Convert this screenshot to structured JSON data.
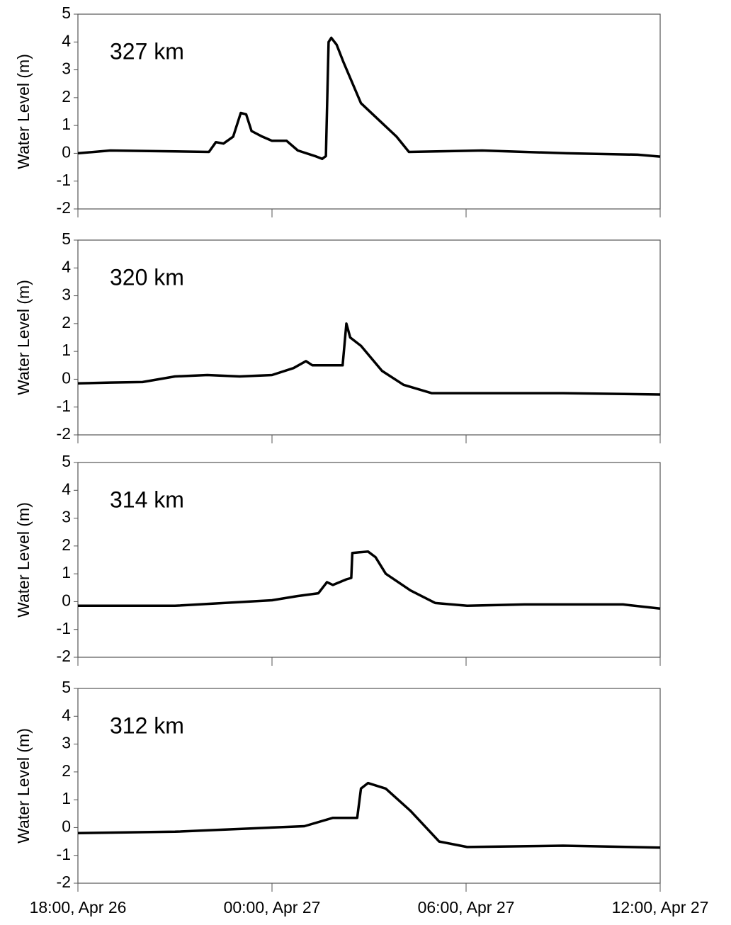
{
  "chart_data": [
    {
      "type": "line",
      "annotation": "327 km",
      "ylabel": "Water Level (m)",
      "color": "#000000",
      "xlim": [
        "Apr 26 18:00",
        "Apr 27 12:00"
      ],
      "xticks": [
        "Apr 26 18:00",
        "Apr 27 00:00",
        "Apr 27 06:00",
        "Apr 27 12:00"
      ],
      "ylim": [
        -2,
        5
      ],
      "yticks": [
        -2,
        -1,
        0,
        1,
        2,
        3,
        4,
        5
      ],
      "x": [
        "Apr 26 18:00",
        "Apr 26 19:00",
        "Apr 26 21:00",
        "Apr 26 22:03",
        "Apr 26 22:16",
        "Apr 26 22:30",
        "Apr 26 22:48",
        "Apr 26 23:02",
        "Apr 26 23:12",
        "Apr 26 23:22",
        "Apr 26 23:42",
        "Apr 27 00:00",
        "Apr 27 00:27",
        "Apr 27 00:48",
        "Apr 27 01:20",
        "Apr 27 01:33",
        "Apr 27 01:40",
        "Apr 27 01:45",
        "Apr 27 01:50",
        "Apr 27 02:00",
        "Apr 27 02:12",
        "Apr 27 02:45",
        "Apr 27 03:18",
        "Apr 27 03:51",
        "Apr 27 04:14",
        "Apr 27 06:30",
        "Apr 27 09:06",
        "Apr 27 11:18",
        "Apr 27 12:00"
      ],
      "values": [
        0,
        0.1,
        0.07,
        0.05,
        0.4,
        0.35,
        0.6,
        1.45,
        1.4,
        0.8,
        0.6,
        0.45,
        0.45,
        0.1,
        -0.1,
        -0.2,
        -0.1,
        4.0,
        4.15,
        3.9,
        3.3,
        1.8,
        1.2,
        0.6,
        0.05,
        0.1,
        0.0,
        -0.05,
        -0.12
      ]
    },
    {
      "type": "line",
      "annotation": "320 km",
      "ylabel": "Water Level (m)",
      "color": "#000000",
      "xlim": [
        "Apr 26 18:00",
        "Apr 27 12:00"
      ],
      "xticks": [
        "Apr 26 18:00",
        "Apr 27 00:00",
        "Apr 27 06:00",
        "Apr 27 12:00"
      ],
      "ylim": [
        -2,
        5
      ],
      "yticks": [
        -2,
        -1,
        0,
        1,
        2,
        3,
        4,
        5
      ],
      "x": [
        "Apr 26 18:00",
        "Apr 26 19:00",
        "Apr 26 20:00",
        "Apr 26 21:00",
        "Apr 26 22:00",
        "Apr 26 23:00",
        "Apr 27 00:00",
        "Apr 27 00:40",
        "Apr 27 01:03",
        "Apr 27 01:15",
        "Apr 27 02:11",
        "Apr 27 02:18",
        "Apr 27 02:25",
        "Apr 27 02:45",
        "Apr 27 03:24",
        "Apr 27 04:04",
        "Apr 27 04:56",
        "Apr 27 06:00",
        "Apr 27 09:00",
        "Apr 27 12:00"
      ],
      "values": [
        -0.15,
        -0.12,
        -0.1,
        0.1,
        0.15,
        0.1,
        0.15,
        0.4,
        0.65,
        0.5,
        0.5,
        2.0,
        1.5,
        1.2,
        0.3,
        -0.2,
        -0.5,
        -0.5,
        -0.5,
        -0.55
      ]
    },
    {
      "type": "line",
      "annotation": "314 km",
      "ylabel": "Water Level (m)",
      "color": "#000000",
      "xlim": [
        "Apr 26 18:00",
        "Apr 27 12:00"
      ],
      "xticks": [
        "Apr 26 18:00",
        "Apr 27 00:00",
        "Apr 27 06:00",
        "Apr 27 12:00"
      ],
      "ylim": [
        -2,
        5
      ],
      "yticks": [
        -2,
        -1,
        0,
        1,
        2,
        3,
        4,
        5
      ],
      "x": [
        "Apr 26 18:00",
        "Apr 26 21:00",
        "Apr 27 00:00",
        "Apr 27 00:47",
        "Apr 27 01:26",
        "Apr 27 01:42",
        "Apr 27 01:53",
        "Apr 27 02:18",
        "Apr 27 02:27",
        "Apr 27 02:29",
        "Apr 27 02:58",
        "Apr 27 03:12",
        "Apr 27 03:31",
        "Apr 27 04:17",
        "Apr 27 05:03",
        "Apr 27 06:02",
        "Apr 27 07:48",
        "Apr 27 10:51",
        "Apr 27 12:00"
      ],
      "values": [
        -0.15,
        -0.15,
        0.05,
        0.2,
        0.3,
        0.7,
        0.6,
        0.8,
        0.85,
        1.75,
        1.8,
        1.6,
        1.0,
        0.4,
        -0.05,
        -0.15,
        -0.1,
        -0.1,
        -0.25
      ]
    },
    {
      "type": "line",
      "annotation": "312 km",
      "ylabel": "Water Level (m)",
      "color": "#000000",
      "xlim": [
        "Apr 26 18:00",
        "Apr 27 12:00"
      ],
      "xticks": [
        {
          "value": "Apr 26 18:00",
          "label": "18:00, Apr 26"
        },
        {
          "value": "Apr 27 00:00",
          "label": "00:00, Apr 27"
        },
        {
          "value": "Apr 27 06:00",
          "label": "06:00, Apr 27"
        },
        {
          "value": "Apr 27 12:00",
          "label": "12:00, Apr 27"
        }
      ],
      "ylim": [
        -2,
        5
      ],
      "yticks": [
        -2,
        -1,
        0,
        1,
        2,
        3,
        4,
        5
      ],
      "x": [
        "Apr 26 18:00",
        "Apr 26 21:00",
        "Apr 27 00:00",
        "Apr 27 01:00",
        "Apr 27 01:53",
        "Apr 27 02:38",
        "Apr 27 02:45",
        "Apr 27 02:58",
        "Apr 27 03:31",
        "Apr 27 04:17",
        "Apr 27 05:10",
        "Apr 27 06:02",
        "Apr 27 09:00",
        "Apr 27 12:00"
      ],
      "values": [
        -0.2,
        -0.15,
        0.0,
        0.05,
        0.35,
        0.35,
        1.4,
        1.6,
        1.4,
        0.6,
        -0.5,
        -0.7,
        -0.65,
        -0.72
      ]
    }
  ]
}
